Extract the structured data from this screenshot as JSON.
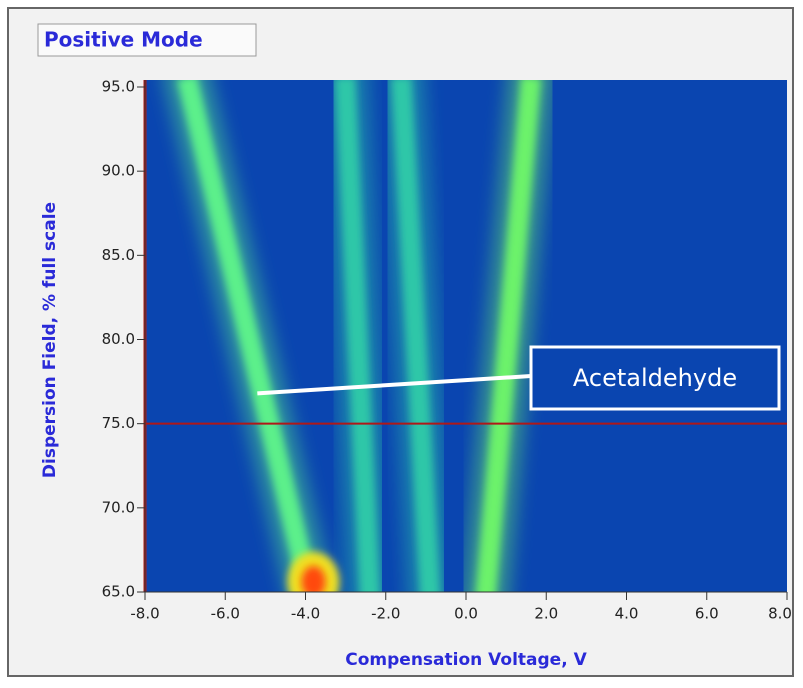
{
  "chart_data": {
    "type": "heatmap",
    "title": "Positive Mode",
    "x_label": "Compensation Voltage, V",
    "y_label": "Dispersion Field, % full scale",
    "xlim": [
      -8,
      8
    ],
    "ylim": [
      65,
      95
    ],
    "xticks": [
      {
        "value": -8,
        "label": "-8.0"
      },
      {
        "value": -6,
        "label": "-6.0"
      },
      {
        "value": -4,
        "label": "-4.0"
      },
      {
        "value": -2,
        "label": "-2.0"
      },
      {
        "value": 0,
        "label": "0.0"
      },
      {
        "value": 2,
        "label": "2.0"
      },
      {
        "value": 4,
        "label": "4.0"
      },
      {
        "value": 6,
        "label": "6.0"
      },
      {
        "value": 8,
        "label": "8.0"
      }
    ],
    "yticks": [
      {
        "value": 65,
        "label": "65.0"
      },
      {
        "value": 70,
        "label": "70.0"
      },
      {
        "value": 75,
        "label": "75.0"
      },
      {
        "value": 80,
        "label": "80.0"
      },
      {
        "value": 85,
        "label": "85.0"
      },
      {
        "value": 90,
        "label": "90.0"
      },
      {
        "value": 95,
        "label": "95.0"
      }
    ],
    "ridges": [
      {
        "x": [
          -3.9,
          -6.9
        ],
        "y": [
          65,
          95
        ],
        "color": "#5cf08a"
      },
      {
        "x": [
          -2.4,
          -3.0
        ],
        "y": [
          65,
          95
        ],
        "color": "#2fc7a8"
      },
      {
        "x": [
          -0.9,
          -1.6
        ],
        "y": [
          65,
          95
        ],
        "color": "#2fc7a8"
      },
      {
        "x": [
          0.5,
          1.6
        ],
        "y": [
          65,
          95
        ],
        "color": "#6cf26a"
      }
    ],
    "peak": {
      "x": -3.8,
      "y": 65.6,
      "color": "#ff4a10"
    },
    "cursor": {
      "x": -8,
      "y": 75,
      "color": "#b01818"
    },
    "background": "#0a45b0",
    "annotation": {
      "text": "Acetaldehyde",
      "x": -5.2,
      "y": 76.8
    }
  }
}
